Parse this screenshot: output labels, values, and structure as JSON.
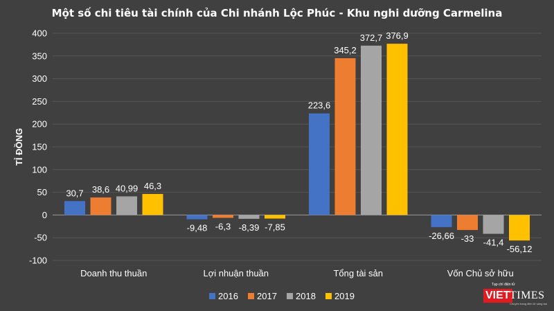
{
  "chart_data": {
    "type": "bar",
    "title": "Một số chi tiêu tài chính của Chi nhánh Lộc Phúc - Khu nghi dưỡng Carmelina",
    "xlabel": "",
    "ylabel": "TỈ ĐỒNG",
    "ylim": [
      -100,
      400
    ],
    "yticks": [
      -100,
      -50,
      0,
      50,
      100,
      150,
      200,
      250,
      300,
      350,
      400
    ],
    "grid": true,
    "legend_position": "bottom",
    "categories": [
      "Doanh thu thuần",
      "Lợi nhuận thuần",
      "Tổng tài sản",
      "Vốn Chủ sở hữu"
    ],
    "series": [
      {
        "name": "2016",
        "color": "#4472c4",
        "values": [
          30.7,
          -9.48,
          223.6,
          -26.66
        ],
        "labels": [
          "30,7",
          "-9,48",
          "223,6",
          "-26,66"
        ]
      },
      {
        "name": "2017",
        "color": "#ed7d31",
        "values": [
          38.6,
          -6.3,
          345.2,
          -33
        ],
        "labels": [
          "38,6",
          "-6,3",
          "345,2",
          "-33"
        ]
      },
      {
        "name": "2018",
        "color": "#a5a5a5",
        "values": [
          40.99,
          -8.39,
          372.7,
          -41.4
        ],
        "labels": [
          "40,99",
          "-8,39",
          "372,7",
          "-41,4"
        ]
      },
      {
        "name": "2019",
        "color": "#ffc000",
        "values": [
          46.3,
          -7.85,
          376.9,
          -56.12
        ],
        "labels": [
          "46,3",
          "-7,85",
          "376,9",
          "-56,12"
        ]
      }
    ]
  },
  "logo": {
    "tagline": "Tạp chí điện tử",
    "brand_viet": "VIET",
    "brand_times": "TIMES",
    "subline": "Chuyên trang điện tử sáng tạo"
  }
}
